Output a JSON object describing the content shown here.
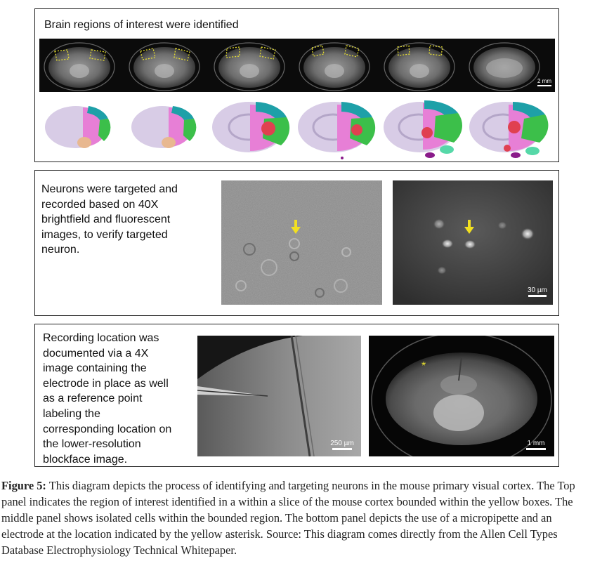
{
  "panel_top": {
    "title": "Brain regions of interest were identified",
    "scale_label": "2 mm"
  },
  "panel_middle": {
    "text": "Neurons were targeted and\nrecorded based on 40X\nbrightfield and fluorescent\nimages, to verify targeted\nneuron.",
    "scale_label": "30 µm"
  },
  "panel_bottom": {
    "text": "Recording location was\ndocumented via a 4X\nimage containing the\nelectrode in place as well\nas a reference point\nlabeling the\ncorresponding location on\nthe lower-resolution\nblockface image.",
    "scale_label_left": "250 µm",
    "scale_label_right": "1 mm",
    "asterisk": "*"
  },
  "caption": {
    "label": "Figure 5:",
    "text": " This diagram depicts the process of identifying and targeting neurons in the mouse primary visual cortex. The Top panel indicates the region of interest identified in a within a slice of the mouse cortex bounded within the yellow boxes. The middle panel shows isolated cells within the bounded region. The bottom panel depicts the use of a micropipette and an electrode at the location indicated by the yellow asterisk. Source: This diagram comes directly from the Allen Cell Types Database Electrophysiology Technical Whitepaper."
  },
  "colors": {
    "roi_box": "#e8e030",
    "arrow": "#f2e020",
    "atlas_pink": "#e77fd6",
    "atlas_teal": "#1ea0a8",
    "atlas_green": "#3cbf4a",
    "atlas_lilac": "#d8cce6"
  }
}
